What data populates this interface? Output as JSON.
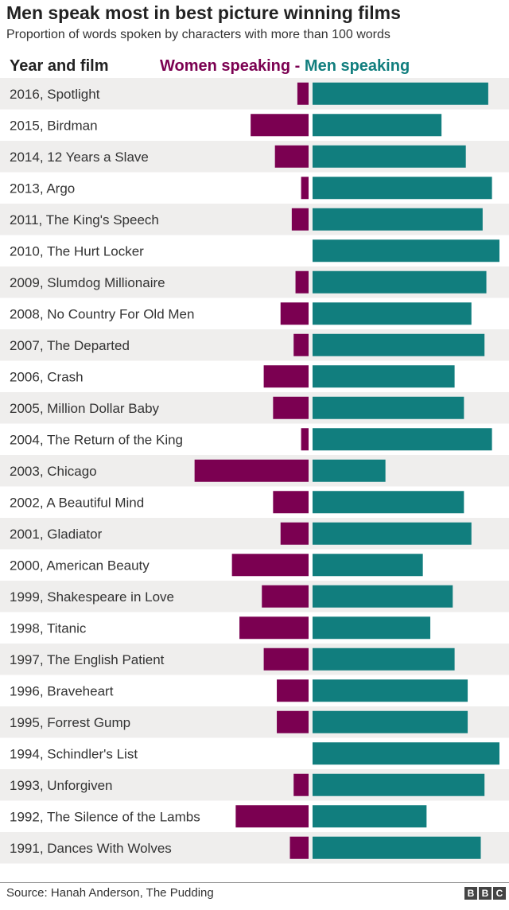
{
  "header": {
    "title": "Men speak most in best picture winning films",
    "subtitle": "Proportion of words spoken by characters with more than 100 words",
    "column_label": "Year and film"
  },
  "legend": {
    "women": "Women speaking",
    "separator": " - ",
    "men": "Men speaking"
  },
  "footer": {
    "source": "Source: Hanah Anderson, The Pudding",
    "logo_letters": [
      "B",
      "B",
      "C"
    ]
  },
  "colors": {
    "women": "#7b0051",
    "men": "#117e7e",
    "stripe": "#efeeed",
    "text": "#222222"
  },
  "chart_data": {
    "type": "bar",
    "orientation": "diverging-horizontal",
    "categories": [
      "2016, Spotlight",
      "2015, Birdman",
      "2014, 12 Years a Slave",
      "2013, Argo",
      "2011, The King's Speech",
      "2010, The Hurt Locker",
      "2009, Slumdog Millionaire",
      "2008, No Country For Old Men",
      "2007, The Departed",
      "2006, Crash",
      "2005, Million Dollar Baby",
      "2004, The Return of the King",
      "2003, Chicago",
      "2002, A Beautiful Mind",
      "2001, Gladiator",
      "2000, American Beauty",
      "1999, Shakespeare in Love",
      "1998, Titanic",
      "1997, The English Patient",
      "1996, Braveheart",
      "1995, Forrest Gump",
      "1994, Schindler's List",
      "1993, Unforgiven",
      "1992, The Silence of the Lambs",
      "1991, Dances With Wolves"
    ],
    "series": [
      {
        "name": "Women speaking",
        "values": [
          0.06,
          0.31,
          0.18,
          0.04,
          0.09,
          0.0,
          0.07,
          0.15,
          0.08,
          0.24,
          0.19,
          0.04,
          0.61,
          0.19,
          0.15,
          0.41,
          0.25,
          0.37,
          0.24,
          0.17,
          0.17,
          0.0,
          0.08,
          0.39,
          0.1
        ]
      },
      {
        "name": "Men speaking",
        "values": [
          0.94,
          0.69,
          0.82,
          0.96,
          0.91,
          1.0,
          0.93,
          0.85,
          0.92,
          0.76,
          0.81,
          0.96,
          0.39,
          0.81,
          0.85,
          0.59,
          0.75,
          0.63,
          0.76,
          0.83,
          0.83,
          1.0,
          0.92,
          0.61,
          0.9
        ]
      }
    ],
    "xlim": [
      0,
      1
    ],
    "grid": false,
    "legend_position": "top"
  }
}
